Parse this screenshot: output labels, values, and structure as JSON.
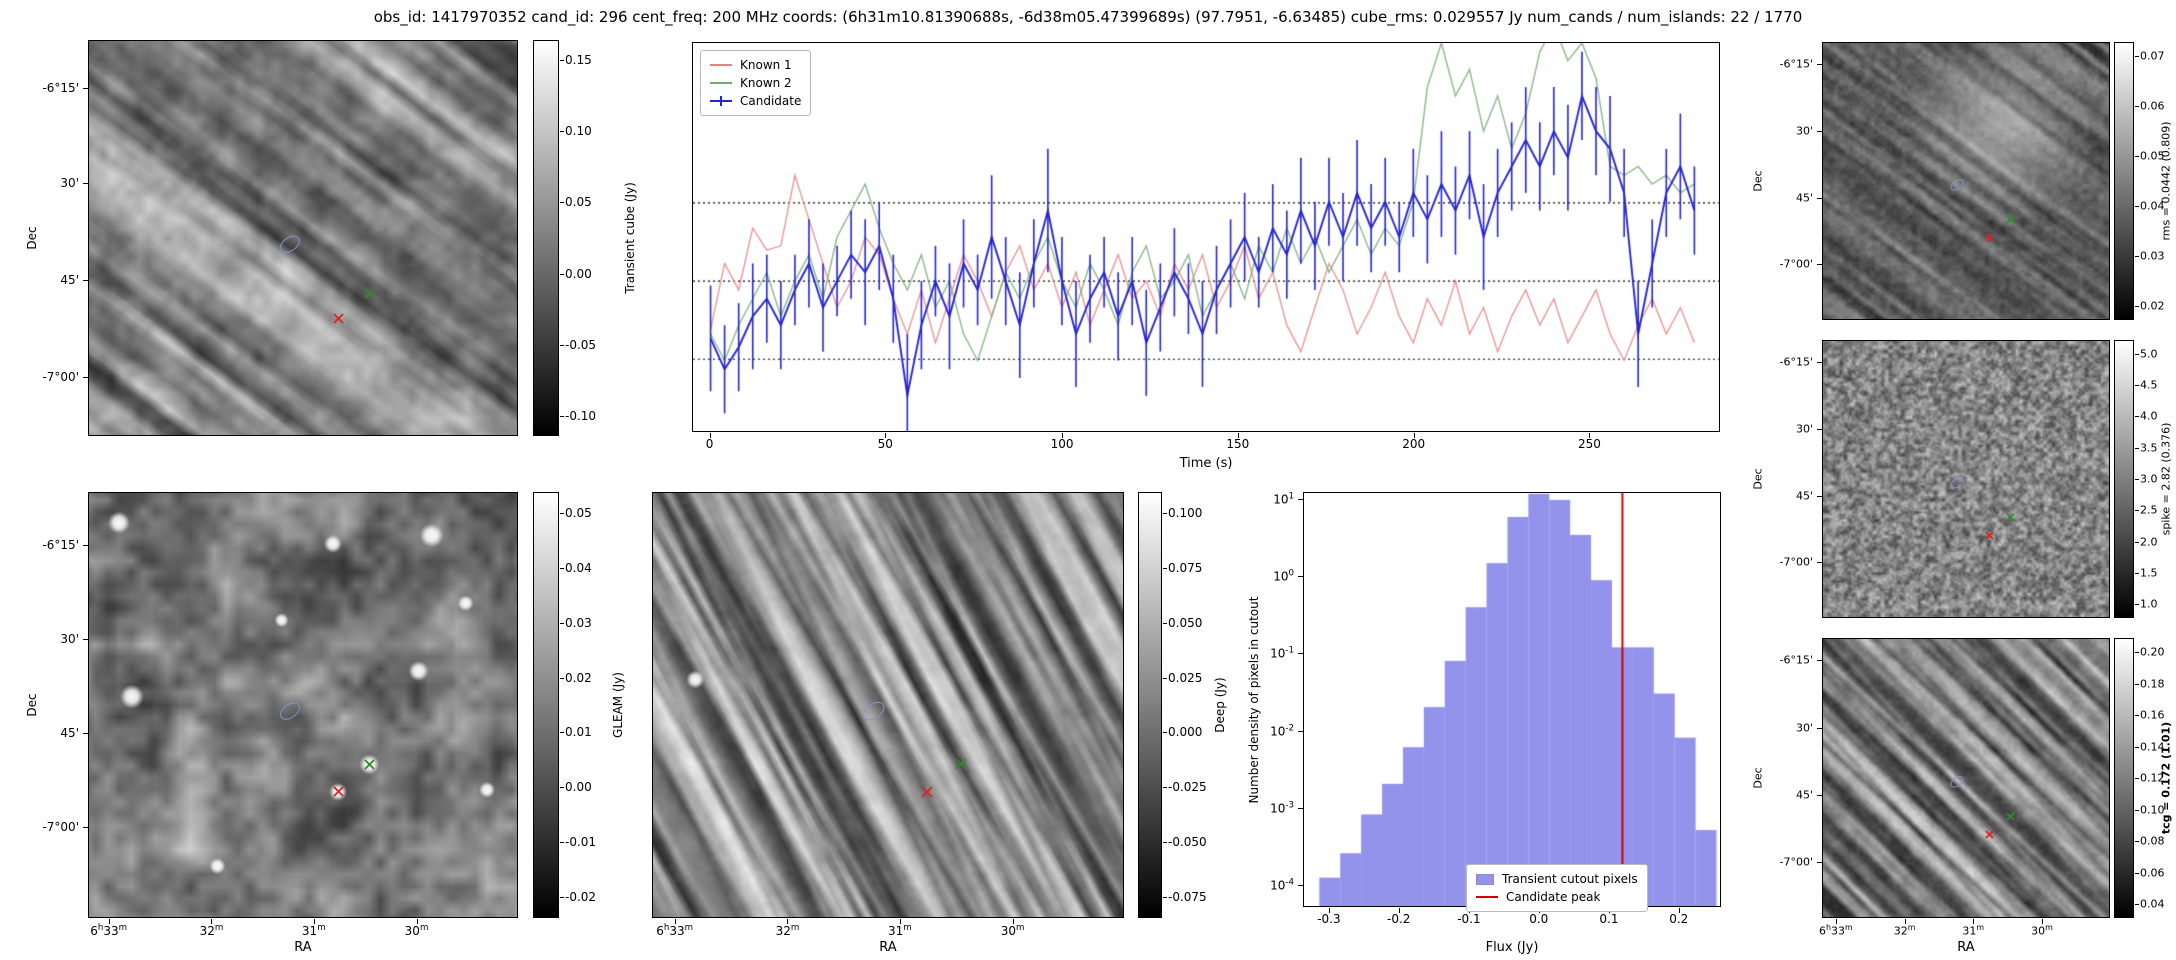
{
  "title": "obs_id: 1417970352 cand_id: 296 cent_freq: 200 MHz coords: (6h31m10.81390688s, -6d38m05.47399689s) (97.7951, -6.63485) cube_rms: 0.029557 Jy num_cands / num_islands: 22 / 1770",
  "colors": {
    "known1": "#e98383",
    "known2": "#74ab74",
    "candidate": "#2525cf",
    "hist_fill": "rgba(120,120,230,0.8)",
    "peak_line": "#d10000",
    "marker_red": "#d62728",
    "marker_green": "#2e8b2e",
    "marker_ellipse": "#8f8fd4"
  },
  "axes": {
    "dec_ticks": [
      "-6°15'",
      "30'",
      "45'",
      "-7°00'"
    ],
    "ra_ticks": [
      "6h33m",
      "32m",
      "31m",
      "30m"
    ]
  },
  "panels": {
    "transient_cube": {
      "ylabel": "Dec",
      "colorbar": {
        "label": "Transient cube (Jy)",
        "ticks": [
          "0.15",
          "0.10",
          "0.05",
          "0.00",
          "-0.05",
          "-0.10"
        ]
      }
    },
    "gleam": {
      "xlabel": "RA",
      "ylabel": "Dec",
      "colorbar": {
        "label": "GLEAM (Jy)",
        "ticks": [
          "0.05",
          "0.04",
          "0.03",
          "0.02",
          "0.01",
          "0.00",
          "-0.01",
          "-0.02"
        ]
      }
    },
    "deep": {
      "xlabel": "RA",
      "colorbar": {
        "label": "Deep (Jy)",
        "ticks": [
          "0.100",
          "0.075",
          "0.050",
          "0.025",
          "0.000",
          "-0.025",
          "-0.050",
          "-0.075"
        ]
      }
    },
    "rms": {
      "ylabel": "Dec",
      "colorbar": {
        "label": "rms = 0.0442 (0.809)",
        "ticks": [
          "0.07",
          "0.06",
          "0.05",
          "0.04",
          "0.03",
          "0.02"
        ]
      }
    },
    "spike": {
      "ylabel": "Dec",
      "colorbar": {
        "label": "spike = 2.82 (0.376)",
        "ticks": [
          "5.0",
          "4.5",
          "4.0",
          "3.5",
          "3.0",
          "2.5",
          "2.0",
          "1.5",
          "1.0"
        ]
      }
    },
    "tcg": {
      "xlabel": "RA",
      "ylabel": "Dec",
      "colorbar": {
        "label": "tcg = 0.172 (1.01)",
        "ticks": [
          "0.20",
          "0.18",
          "0.16",
          "0.14",
          "0.12",
          "0.10",
          "0.08",
          "0.06",
          "0.04"
        ]
      }
    }
  },
  "markers": {
    "ellipse": [
      0.47,
      0.515
    ],
    "green_cross": [
      0.655,
      0.64
    ],
    "red_cross": [
      0.582,
      0.705
    ]
  },
  "chart_data": [
    {
      "type": "line",
      "xlabel": "Time (s)",
      "ylabel": "",
      "xlim": [
        -5,
        287
      ],
      "ylim": [
        -0.17,
        0.27
      ],
      "xticks": [
        0,
        50,
        100,
        150,
        200,
        250
      ],
      "xtick_labels": [
        "0",
        "50",
        "100",
        "150",
        "200",
        "250"
      ],
      "threshold_lines": [
        0.0887,
        0.0,
        -0.0887
      ],
      "legend_position": "upper left",
      "x": [
        0,
        4,
        8,
        12,
        16,
        20,
        24,
        28,
        32,
        36,
        40,
        44,
        48,
        52,
        56,
        60,
        64,
        68,
        72,
        76,
        80,
        84,
        88,
        92,
        96,
        100,
        104,
        108,
        112,
        116,
        120,
        124,
        128,
        132,
        136,
        140,
        144,
        148,
        152,
        156,
        160,
        164,
        168,
        172,
        176,
        180,
        184,
        188,
        192,
        196,
        200,
        204,
        208,
        212,
        216,
        220,
        224,
        228,
        232,
        236,
        240,
        244,
        248,
        252,
        256,
        260,
        264,
        268,
        272,
        276,
        280
      ],
      "series": [
        {
          "name": "Known 1",
          "color": "#e98383",
          "y": [
            -0.055,
            0.02,
            -0.01,
            0.06,
            0.035,
            0.04,
            0.12,
            0.07,
            0.02,
            -0.03,
            0.0,
            0.05,
            0.03,
            -0.02,
            -0.06,
            -0.01,
            -0.07,
            -0.02,
            0.03,
            0.0,
            -0.04,
            0.01,
            0.04,
            -0.01,
            0.02,
            -0.03,
            0.01,
            -0.05,
            -0.01,
            0.03,
            -0.02,
            0.0,
            -0.04,
            0.02,
            -0.01,
            0.03,
            -0.03,
            0.0,
            0.04,
            -0.02,
            0.01,
            -0.05,
            -0.08,
            -0.03,
            0.02,
            -0.01,
            -0.06,
            -0.03,
            0.01,
            -0.04,
            -0.07,
            -0.02,
            -0.05,
            0.0,
            -0.06,
            -0.03,
            -0.08,
            -0.04,
            -0.01,
            -0.05,
            -0.02,
            -0.07,
            -0.04,
            -0.01,
            -0.06,
            -0.09,
            -0.05,
            -0.02,
            -0.06,
            -0.03,
            -0.07
          ]
        },
        {
          "name": "Known 2",
          "color": "#74ab74",
          "y": [
            -0.06,
            -0.09,
            -0.05,
            -0.02,
            0.01,
            -0.04,
            0.0,
            0.03,
            -0.02,
            0.05,
            0.08,
            0.11,
            0.06,
            0.02,
            -0.01,
            0.03,
            -0.03,
            0.0,
            -0.06,
            -0.09,
            -0.04,
            0.01,
            -0.02,
            0.02,
            0.05,
            0.0,
            -0.03,
            0.02,
            -0.01,
            -0.05,
            0.01,
            0.04,
            -0.02,
            0.0,
            0.03,
            -0.04,
            -0.01,
            0.02,
            -0.02,
            0.04,
            0.01,
            0.06,
            0.02,
            0.05,
            0.01,
            0.04,
            0.07,
            0.03,
            0.06,
            0.04,
            0.09,
            0.22,
            0.27,
            0.21,
            0.24,
            0.17,
            0.21,
            0.15,
            0.19,
            0.26,
            0.29,
            0.25,
            0.27,
            0.23,
            0.13,
            0.12,
            0.13,
            0.11,
            0.12,
            0.1,
            0.11
          ]
        },
        {
          "name": "Candidate",
          "color": "#2525cf",
          "y": [
            -0.065,
            -0.1,
            -0.075,
            -0.04,
            -0.02,
            -0.05,
            -0.01,
            0.02,
            -0.03,
            0.0,
            0.03,
            0.01,
            0.04,
            -0.02,
            -0.13,
            -0.05,
            0.0,
            -0.04,
            0.02,
            -0.01,
            0.05,
            0.0,
            -0.05,
            0.02,
            0.08,
            0.0,
            -0.06,
            -0.02,
            0.01,
            -0.04,
            0.0,
            -0.07,
            -0.03,
            0.01,
            -0.02,
            -0.06,
            -0.01,
            0.02,
            0.05,
            0.01,
            0.06,
            0.03,
            0.08,
            0.04,
            0.09,
            0.05,
            0.1,
            0.06,
            0.09,
            0.05,
            0.1,
            0.07,
            0.11,
            0.08,
            0.12,
            0.05,
            0.1,
            0.13,
            0.16,
            0.13,
            0.17,
            0.14,
            0.21,
            0.17,
            0.15,
            0.1,
            -0.06,
            0.02,
            0.1,
            0.13,
            0.08
          ],
          "yerr": [
            0.06,
            0.05,
            0.05,
            0.06,
            0.05,
            0.05,
            0.04,
            0.05,
            0.05,
            0.04,
            0.05,
            0.06,
            0.05,
            0.05,
            0.07,
            0.05,
            0.04,
            0.06,
            0.05,
            0.04,
            0.07,
            0.05,
            0.06,
            0.05,
            0.07,
            0.05,
            0.06,
            0.05,
            0.04,
            0.05,
            0.05,
            0.06,
            0.05,
            0.05,
            0.04,
            0.06,
            0.05,
            0.05,
            0.05,
            0.04,
            0.05,
            0.05,
            0.06,
            0.05,
            0.05,
            0.05,
            0.06,
            0.05,
            0.05,
            0.04,
            0.05,
            0.05,
            0.06,
            0.05,
            0.05,
            0.06,
            0.05,
            0.05,
            0.06,
            0.05,
            0.05,
            0.06,
            0.05,
            0.05,
            0.06,
            0.05,
            0.06,
            0.05,
            0.05,
            0.06,
            0.05
          ]
        }
      ]
    },
    {
      "type": "bar",
      "xlabel": "Flux (Jy)",
      "ylabel": "Number density of pixels in cutout",
      "yscale": "log",
      "xlim": [
        -0.337,
        0.26
      ],
      "ylog_range": [
        -4.29,
        1.09
      ],
      "bin_width": 0.03,
      "bin_centers": [
        -0.3,
        -0.27,
        -0.24,
        -0.21,
        -0.18,
        -0.15,
        -0.12,
        -0.09,
        -0.06,
        -0.03,
        0.0,
        0.03,
        0.06,
        0.09,
        0.12,
        0.15,
        0.18,
        0.21,
        0.24
      ],
      "values": [
        0.00012,
        0.00025,
        0.0008,
        0.002,
        0.006,
        0.02,
        0.08,
        0.4,
        1.5,
        6.0,
        12.0,
        10.0,
        3.5,
        0.9,
        0.12,
        0.12,
        0.03,
        0.008,
        0.0005
      ],
      "candidate_peak": 0.12,
      "legend": [
        "Transient cutout pixels",
        "Candidate peak"
      ],
      "xticks": [
        -0.3,
        -0.2,
        -0.1,
        0.0,
        0.1,
        0.2
      ],
      "xtick_labels": [
        "-0.3",
        "-0.2",
        "-0.1",
        "0.0",
        "0.1",
        "0.2"
      ],
      "ytick_labels": [
        "10^1",
        "10^0",
        "10^-1",
        "10^-2",
        "10^-3",
        "10^-4"
      ]
    }
  ]
}
